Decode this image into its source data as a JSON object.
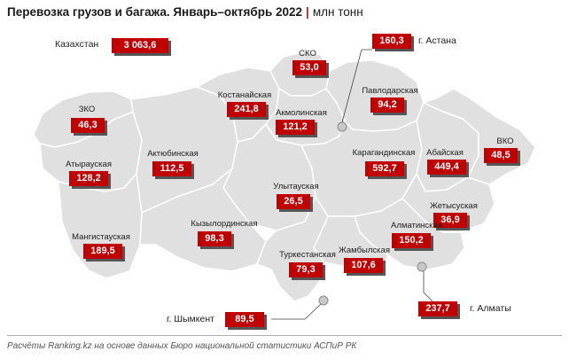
{
  "title": "Перевозка грузов и багажа. Январь–октябрь 2022",
  "unit": "млн тонн",
  "footer": "Расчёты Ranking.kz на основе данных Бюро национальной статистики АСПиР РК",
  "colors": {
    "region_fill": "#e0e0e0",
    "border": "#ffffff",
    "value_box": "#c00000",
    "accent_separator": "#b22222"
  },
  "total": {
    "label": "Казахстан",
    "value": "3 063,6"
  },
  "regions": [
    {
      "name": "ЗКО",
      "value": "46,3"
    },
    {
      "name": "Атырауская",
      "value": "128,2"
    },
    {
      "name": "Мангистауская",
      "value": "189,5"
    },
    {
      "name": "Актюбинская",
      "value": "112,5"
    },
    {
      "name": "Костанайская",
      "value": "241,8"
    },
    {
      "name": "СКО",
      "value": "53,0"
    },
    {
      "name": "Акмолинская",
      "value": "121,2"
    },
    {
      "name": "Павлодарская",
      "value": "94,2"
    },
    {
      "name": "Улытауская",
      "value": "26,5"
    },
    {
      "name": "Кызылординская",
      "value": "98,3"
    },
    {
      "name": "Карагандинская",
      "value": "592,7"
    },
    {
      "name": "Абайская",
      "value": "449,4"
    },
    {
      "name": "ВКО",
      "value": "48,5"
    },
    {
      "name": "Жетысуская",
      "value": "36,9"
    },
    {
      "name": "Алматинская",
      "value": "150,2"
    },
    {
      "name": "Жамбылская",
      "value": "107,6"
    },
    {
      "name": "Туркестанская",
      "value": "79,3"
    }
  ],
  "cities": [
    {
      "name": "г. Астана",
      "value": "160,3"
    },
    {
      "name": "г. Шымкент",
      "value": "89,5"
    },
    {
      "name": "г. Алматы",
      "value": "237,7"
    }
  ]
}
